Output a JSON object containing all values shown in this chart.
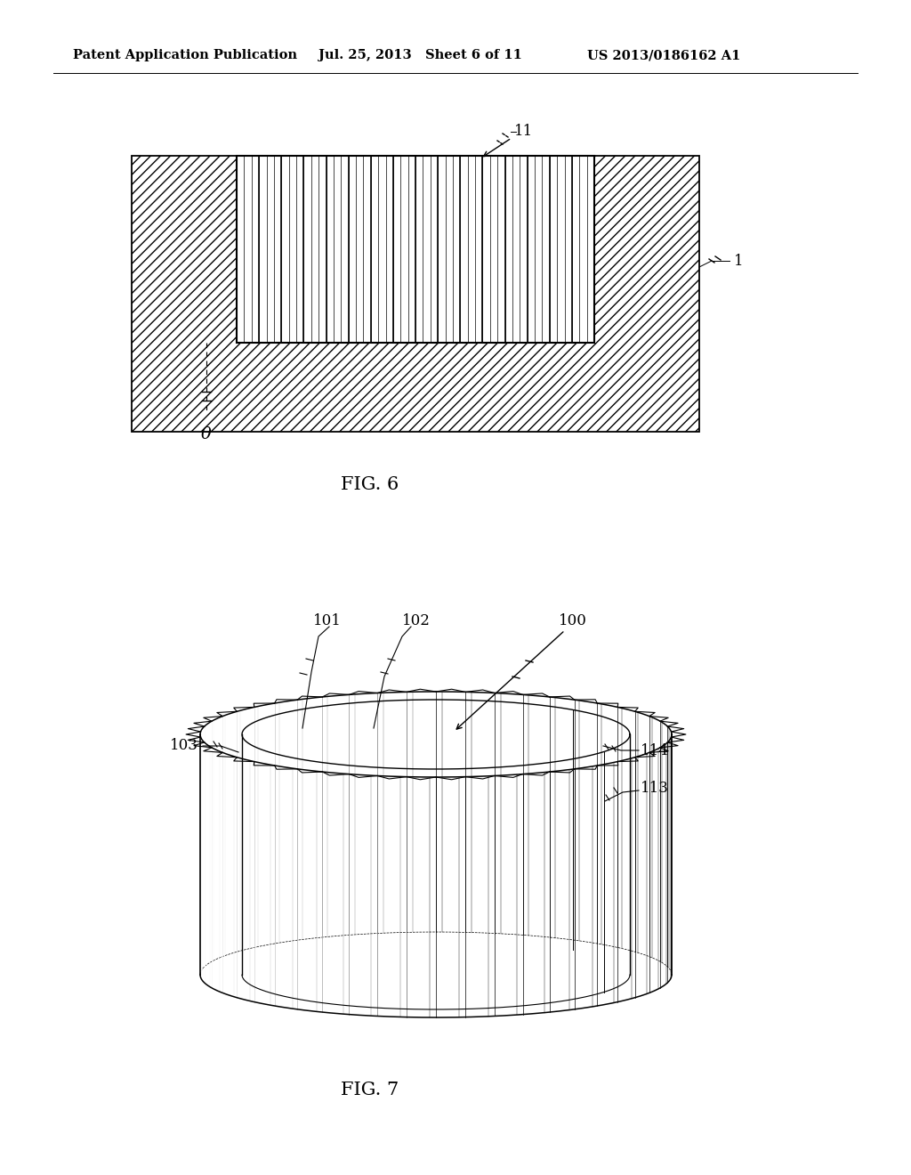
{
  "bg_color": "#ffffff",
  "header_left": "Patent Application Publication",
  "header_mid": "Jul. 25, 2013   Sheet 6 of 11",
  "header_right": "US 2013/0186162 A1",
  "fig6_label": "FIG. 6",
  "fig7_label": "FIG. 7",
  "label_11": "11",
  "label_1": "1",
  "label_theta": "θ",
  "label_100": "100",
  "label_101": "101",
  "label_102": "102",
  "label_103": "103",
  "label_113": "113",
  "label_114": "114"
}
